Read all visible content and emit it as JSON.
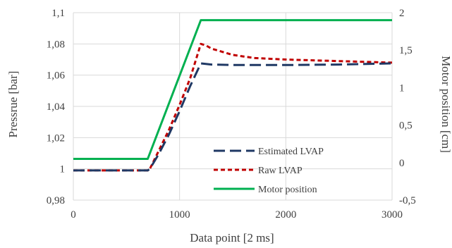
{
  "chart_data": {
    "type": "line",
    "title": "",
    "xlabel": "Data point [2 ms]",
    "ylabel": "Pressrue [bar]",
    "y2label": "Motor position [cm]",
    "xlim": [
      0,
      3000
    ],
    "ylim": [
      0.98,
      1.1
    ],
    "y2lim": [
      -0.5,
      2
    ],
    "x_ticks": [
      "0",
      "1000",
      "2000",
      "3000"
    ],
    "y_ticks": [
      "0,98",
      "1",
      "1,02",
      "1,04",
      "1,06",
      "1,08",
      "1,1"
    ],
    "y2_ticks": [
      "-0,5",
      "0",
      "0,5",
      "1",
      "1,5",
      "2"
    ],
    "grid": true,
    "legend": "inside-lower-right",
    "colors": {
      "estimated": "#1f3864",
      "raw": "#c00000",
      "motor": "#00b050",
      "grid": "#d9d9d9",
      "text": "#404040"
    },
    "series": [
      {
        "name": "Estimated LVAP",
        "axis": "left",
        "style": "long-dash",
        "x": [
          0,
          700,
          720,
          800,
          900,
          1000,
          1100,
          1200,
          1300,
          1500,
          2000,
          2500,
          3000
        ],
        "y": [
          0.999,
          0.999,
          1.0,
          1.009,
          1.022,
          1.037,
          1.053,
          1.0675,
          1.0668,
          1.0665,
          1.0665,
          1.0668,
          1.0675
        ]
      },
      {
        "name": "Raw LVAP",
        "axis": "left",
        "style": "short-dash",
        "x": [
          0,
          700,
          720,
          800,
          900,
          1000,
          1100,
          1200,
          1250,
          1300,
          1400,
          1500,
          1700,
          2000,
          2500,
          3000
        ],
        "y": [
          0.999,
          0.999,
          1.0,
          1.011,
          1.025,
          1.041,
          1.058,
          1.08,
          1.079,
          1.077,
          1.075,
          1.073,
          1.071,
          1.07,
          1.069,
          1.068
        ]
      },
      {
        "name": "Motor position",
        "axis": "right",
        "style": "solid",
        "x": [
          0,
          700,
          1200,
          3000
        ],
        "y": [
          0.05,
          0.05,
          1.9,
          1.9
        ]
      }
    ]
  }
}
